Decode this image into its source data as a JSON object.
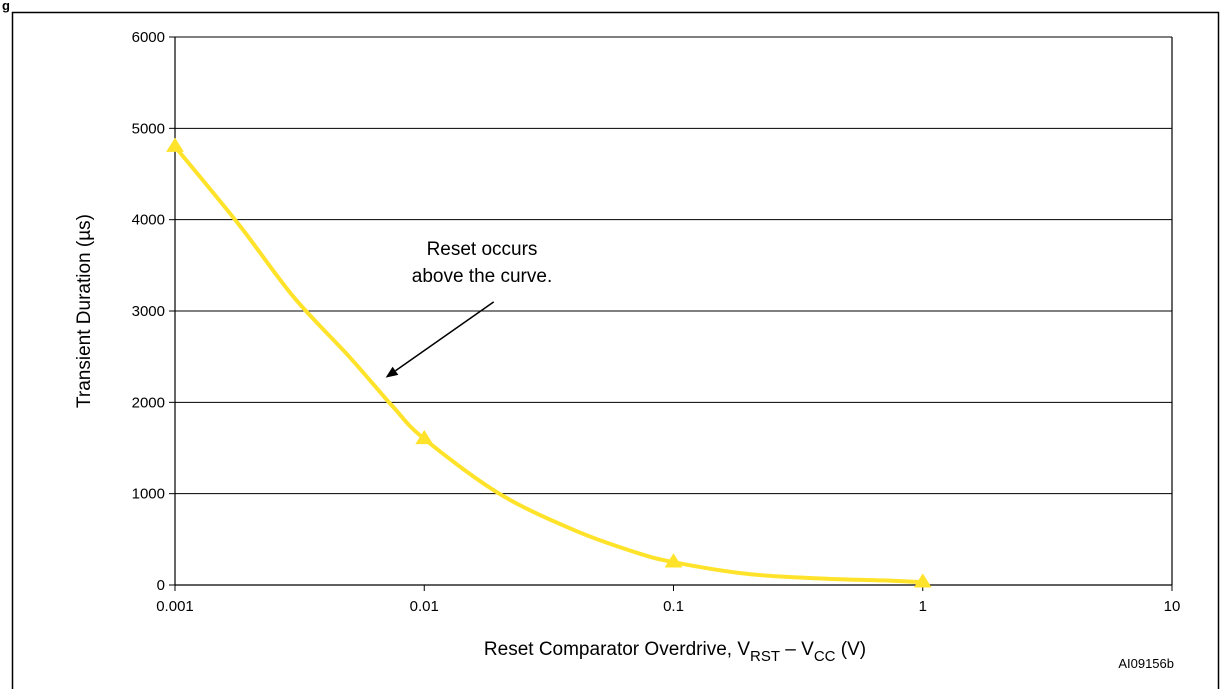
{
  "figure_caption": "g",
  "figure_id": "AI09156b",
  "chart_data": {
    "type": "line",
    "x_scale": "log",
    "xlim": [
      0.001,
      10
    ],
    "ylim": [
      0,
      6000
    ],
    "x_ticks": [
      0.001,
      0.01,
      0.1,
      1,
      10
    ],
    "x_tick_labels": [
      "0.001",
      "0.01",
      "0.1",
      "1",
      "10"
    ],
    "y_ticks": [
      0,
      1000,
      2000,
      3000,
      4000,
      5000,
      6000
    ],
    "y_tick_labels": [
      "0",
      "1000",
      "2000",
      "3000",
      "4000",
      "5000",
      "6000"
    ],
    "grid": "horizontal",
    "xlabel": {
      "main": "Reset Comparator Overdrive, V",
      "sub1": "RST",
      "mid": " – V",
      "sub2": "CC",
      "end": " (V)"
    },
    "ylabel": "Transient Duration (µs)",
    "annotation": {
      "lines": [
        "Reset occurs",
        "above the curve."
      ],
      "arrow_from": {
        "x": 0.019,
        "y": 3100
      },
      "arrow_to": {
        "x": 0.007,
        "y": 2270
      }
    },
    "series": [
      {
        "color": "#FFE32B",
        "marker": "triangle",
        "points": [
          {
            "x": 0.001,
            "y": 4800
          },
          {
            "x": 0.01,
            "y": 1600
          },
          {
            "x": 0.1,
            "y": 250
          },
          {
            "x": 1,
            "y": 30
          }
        ],
        "curve": [
          {
            "x": 0.001,
            "y": 4800
          },
          {
            "x": 0.0018,
            "y": 3950
          },
          {
            "x": 0.003,
            "y": 3150
          },
          {
            "x": 0.005,
            "y": 2500
          },
          {
            "x": 0.0075,
            "y": 1950
          },
          {
            "x": 0.01,
            "y": 1600
          },
          {
            "x": 0.02,
            "y": 1000
          },
          {
            "x": 0.04,
            "y": 600
          },
          {
            "x": 0.07,
            "y": 360
          },
          {
            "x": 0.1,
            "y": 250
          },
          {
            "x": 0.2,
            "y": 120
          },
          {
            "x": 0.4,
            "y": 70
          },
          {
            "x": 0.7,
            "y": 50
          },
          {
            "x": 1,
            "y": 30
          }
        ]
      }
    ]
  }
}
